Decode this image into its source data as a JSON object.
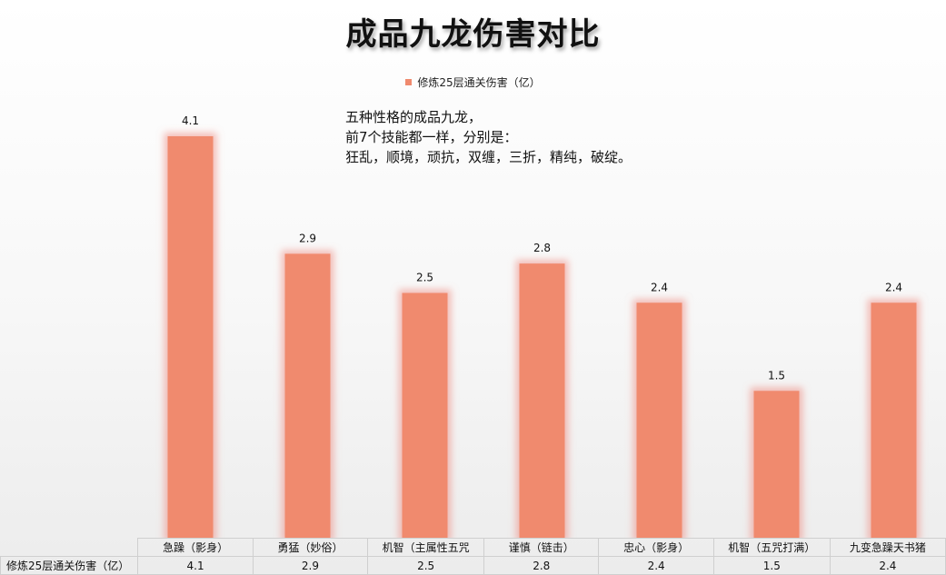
{
  "chart_data": {
    "type": "bar",
    "title": "成品九龙伤害对比",
    "legend": {
      "position": "top",
      "entries": [
        "修炼25层通关伤害（亿）"
      ]
    },
    "categories": [
      "急躁（影身）",
      "勇猛（妙俗）",
      "机智（主属性五咒",
      "谨慎（链击）",
      "忠心（影身）",
      "机智（五咒打满）",
      "九变急躁天书猪"
    ],
    "series": [
      {
        "name": "修炼25层通关伤害（亿）",
        "values": [
          4.1,
          2.9,
          2.5,
          2.8,
          2.4,
          1.5,
          2.4
        ],
        "value_labels": [
          "4.1",
          "2.9",
          "2.5",
          "2.8",
          "2.4",
          "1.5",
          "2.4"
        ],
        "color": "#f08a6e"
      }
    ],
    "ylim": [
      0,
      5.6
    ],
    "grid": false,
    "data_table": true
  },
  "annotation": {
    "lines": [
      "五种性格的成品九龙，",
      "前7个技能都一样，分别是：",
      "狂乱，顺境，顽抗，双缠，三折，精纯，破绽。"
    ]
  }
}
